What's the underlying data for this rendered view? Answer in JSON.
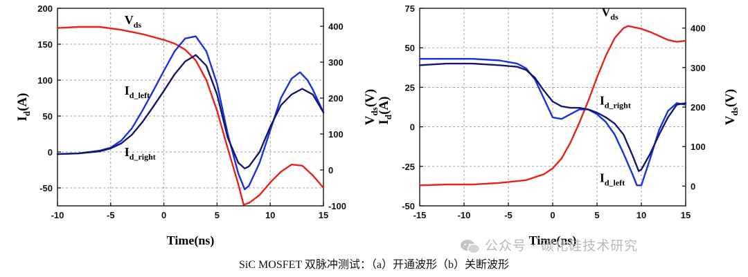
{
  "caption": "SiC MOSFET 双脉冲测试：（a）开通波形（b）关断波形",
  "watermark": "公众号 · 碳化硅技术研究",
  "colors": {
    "vds": "#e8211d",
    "id_left": "#1a2fe0",
    "id_right": "#15176a",
    "grid": "#9a9a9a"
  },
  "chart_data": [
    {
      "type": "line",
      "name": "turn-on",
      "xlabel": "Time(ns)",
      "ylabel_left": "I_d(A)",
      "ylabel_right": "V_ds(V)",
      "xlim": [
        -10,
        15
      ],
      "ylim_left": [
        -75,
        200
      ],
      "ylim_right": [
        -100,
        450
      ],
      "xticks": [
        -10,
        -5,
        0,
        5,
        10,
        15
      ],
      "yticks_left": [
        -50,
        0,
        50,
        100,
        150,
        200
      ],
      "yticks_right": [
        -100,
        0,
        100,
        200,
        300,
        400
      ],
      "annotations": [
        {
          "base": "V",
          "sub": "ds",
          "x": -3.7,
          "y": 178
        },
        {
          "base": "I",
          "sub": "d_left",
          "x": -3.7,
          "y": 80
        },
        {
          "base": "I",
          "sub": "d_right",
          "x": -3.7,
          "y": -6
        }
      ],
      "series": [
        {
          "name": "V_ds",
          "axis": "right",
          "color_key": "vds",
          "x": [
            -10,
            -8,
            -6,
            -4,
            -2,
            0,
            1,
            2,
            3,
            4,
            5,
            6,
            7,
            7.5,
            8,
            9,
            10,
            11,
            12,
            13,
            14,
            15
          ],
          "y": [
            395,
            398,
            398,
            390,
            378,
            362,
            352,
            335,
            305,
            250,
            165,
            60,
            -40,
            -97,
            -92,
            -70,
            -35,
            -5,
            15,
            12,
            -15,
            -50
          ]
        },
        {
          "name": "I_d_left",
          "axis": "left",
          "color_key": "id_left",
          "x": [
            -10,
            -8,
            -6,
            -5,
            -4,
            -3,
            -2,
            -1,
            0,
            1,
            2,
            3,
            4,
            5,
            6,
            7,
            7.6,
            8,
            9,
            10,
            11,
            12,
            12.8,
            13.5,
            14,
            15
          ],
          "y": [
            -3,
            -2,
            2,
            6,
            16,
            33,
            58,
            85,
            113,
            140,
            158,
            161,
            140,
            95,
            25,
            -30,
            -52,
            -47,
            -15,
            30,
            75,
            102,
            111,
            100,
            87,
            55
          ]
        },
        {
          "name": "I_d_right",
          "axis": "left",
          "color_key": "id_right",
          "x": [
            -10,
            -8,
            -6,
            -5,
            -4,
            -3,
            -2,
            -1,
            0,
            1,
            2,
            3,
            4,
            5,
            6,
            7,
            7.6,
            8,
            9,
            10,
            11,
            12,
            13,
            14,
            15
          ],
          "y": [
            -3,
            -2,
            1,
            5,
            12,
            24,
            42,
            63,
            85,
            108,
            126,
            135,
            120,
            80,
            20,
            -15,
            -23,
            -20,
            0,
            35,
            65,
            80,
            88,
            80,
            55
          ]
        }
      ]
    },
    {
      "type": "line",
      "name": "turn-off",
      "xlabel": "Time(ns)",
      "ylabel_left": "I_d(A)",
      "ylabel_right": "V_ds(V)",
      "xlim": [
        -15,
        15
      ],
      "ylim_left": [
        -50,
        75
      ],
      "ylim_right": [
        -50,
        450
      ],
      "xticks": [
        -15,
        -10,
        -5,
        0,
        5,
        10,
        15
      ],
      "yticks_left": [
        -50,
        -25,
        0,
        25,
        50,
        75
      ],
      "yticks_right": [
        0,
        100,
        200,
        300,
        400
      ],
      "annotations": [
        {
          "base": "V",
          "sub": "ds",
          "x": 5.5,
          "y": 70
        },
        {
          "base": "I",
          "sub": "d_right",
          "x": 5.3,
          "y": 14
        },
        {
          "base": "I",
          "sub": "d_left",
          "x": 5.3,
          "y": -35
        }
      ],
      "series": [
        {
          "name": "V_ds",
          "axis": "right",
          "color_key": "vds",
          "x": [
            -15,
            -12,
            -9,
            -6,
            -3,
            -1,
            0,
            1,
            2,
            3,
            4,
            5,
            6,
            7,
            8,
            8.5,
            9,
            10,
            11,
            12,
            13,
            14,
            15
          ],
          "y": [
            2,
            4,
            4,
            8,
            15,
            30,
            45,
            70,
            110,
            160,
            215,
            275,
            330,
            375,
            400,
            405,
            403,
            398,
            390,
            380,
            370,
            365,
            368
          ]
        },
        {
          "name": "I_d_left",
          "axis": "left",
          "color_key": "id_left",
          "x": [
            -15,
            -12,
            -9,
            -6,
            -4,
            -3,
            -2,
            -1,
            0,
            1,
            2,
            3,
            4,
            5,
            6,
            7,
            8,
            9,
            9.5,
            10,
            11,
            12,
            13,
            14,
            15
          ],
          "y": [
            43,
            43,
            43,
            42,
            40,
            37,
            30,
            18,
            6,
            5,
            8,
            11,
            11,
            8,
            3,
            -5,
            -17,
            -30,
            -37,
            -37,
            -20,
            -2,
            10,
            15,
            14
          ]
        },
        {
          "name": "I_d_right",
          "axis": "left",
          "color_key": "id_right",
          "x": [
            -15,
            -12,
            -9,
            -6,
            -4,
            -3,
            -2,
            -1,
            0,
            1,
            2,
            3,
            4,
            5,
            6,
            7,
            8,
            9,
            9.7,
            10,
            11,
            12,
            13,
            14,
            15
          ],
          "y": [
            39,
            40,
            40,
            39,
            38,
            36,
            31,
            23,
            16,
            13,
            12,
            12,
            11,
            9,
            6,
            2,
            -5,
            -18,
            -28,
            -27,
            -17,
            -5,
            6,
            14,
            15
          ]
        }
      ]
    }
  ]
}
